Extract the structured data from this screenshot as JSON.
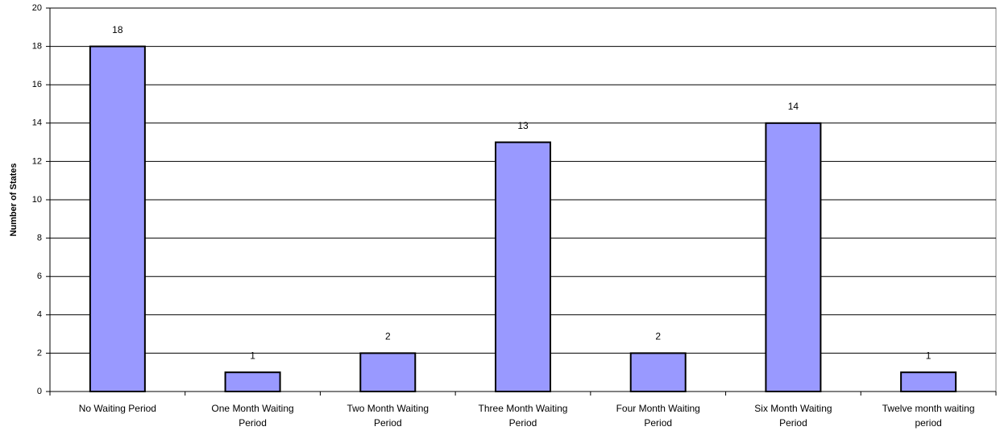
{
  "chart_data": {
    "type": "bar",
    "y_label": "Number of States",
    "categories": [
      "No Waiting Period",
      "One Month Waiting Period",
      "Two Month Waiting Period",
      "Three Month Waiting Period",
      "Four Month Waiting Period",
      "Six Month Waiting Period",
      "Twelve month waiting period"
    ],
    "values": [
      18,
      1,
      2,
      13,
      2,
      14,
      1
    ],
    "color": "#9999ff",
    "ylim": [
      0,
      20
    ],
    "yticks": [
      0,
      2,
      4,
      6,
      8,
      10,
      12,
      14,
      16,
      18,
      20
    ],
    "grid": true
  }
}
